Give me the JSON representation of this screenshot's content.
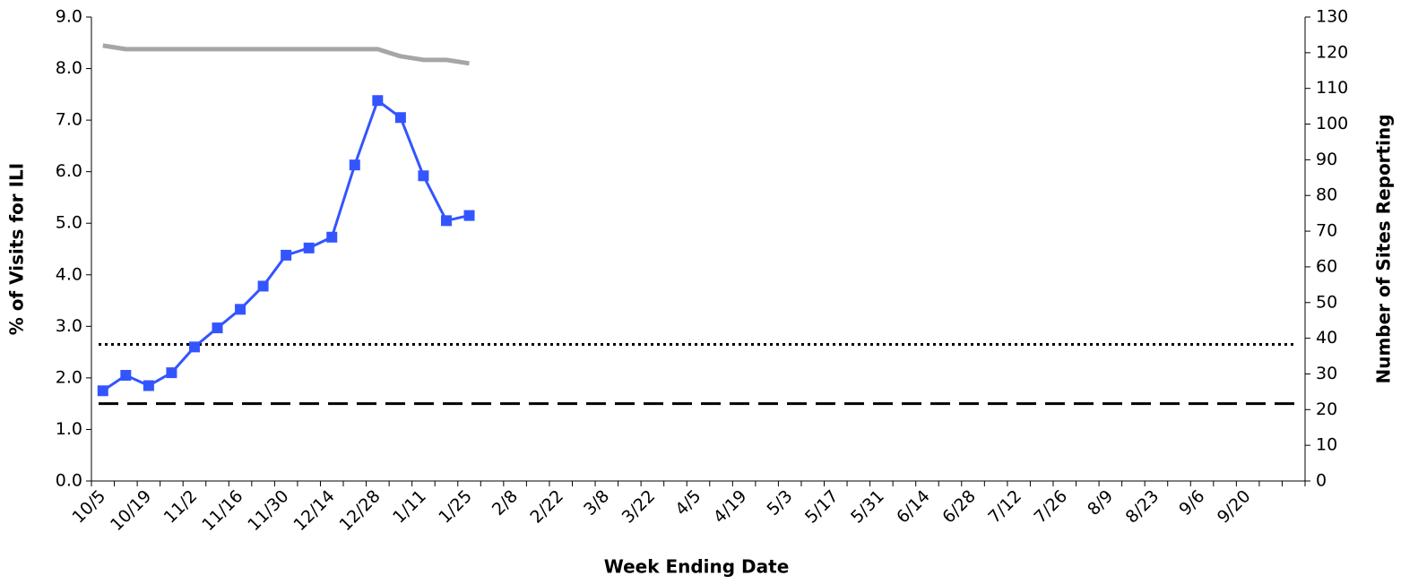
{
  "chart_data": {
    "type": "line",
    "y_title": "% of Visits for ILI",
    "y2_title": "Number of Sites Reporting",
    "x_title": "Week Ending Date",
    "categories": [
      "10/5",
      null,
      "10/19",
      null,
      "11/2",
      null,
      "11/16",
      null,
      "11/30",
      null,
      "12/14",
      null,
      "12/28",
      null,
      "1/11",
      null,
      "1/25",
      null,
      "2/8",
      null,
      "2/22",
      null,
      "3/8",
      null,
      "3/22",
      null,
      "4/5",
      null,
      "4/19",
      null,
      "5/3",
      null,
      "5/17",
      null,
      "5/31",
      null,
      "6/14",
      null,
      "6/28",
      null,
      "7/12",
      null,
      "7/26",
      null,
      "8/9",
      null,
      "8/23",
      null,
      "9/6",
      null,
      "9/20",
      null,
      null
    ],
    "series": [
      {
        "color": "#a6a6a6",
        "axis": "y2",
        "markers": false,
        "values": [
          122,
          121,
          121,
          121,
          121,
          121,
          121,
          121,
          121,
          121,
          121,
          121,
          121,
          119,
          118,
          118,
          117,
          null,
          null,
          null,
          null,
          null,
          null,
          null,
          null,
          null,
          null,
          null,
          null,
          null,
          null,
          null,
          null,
          null,
          null,
          null,
          null,
          null,
          null,
          null,
          null,
          null,
          null,
          null,
          null,
          null,
          null,
          null,
          null,
          null,
          null,
          null,
          null
        ]
      },
      {
        "color": "#3355ff",
        "axis": "y",
        "markers": true,
        "values": [
          1.75,
          2.05,
          1.85,
          2.1,
          2.6,
          2.97,
          3.33,
          3.78,
          4.38,
          4.52,
          4.73,
          6.13,
          7.38,
          7.05,
          5.92,
          5.05,
          5.15,
          null,
          null,
          null,
          null,
          null,
          null,
          null,
          null,
          null,
          null,
          null,
          null,
          null,
          null,
          null,
          null,
          null,
          null,
          null,
          null,
          null,
          null,
          null,
          null,
          null,
          null,
          null,
          null,
          null,
          null,
          null,
          null,
          null,
          null,
          null,
          null
        ]
      }
    ],
    "hlines": [
      {
        "value": 2.65,
        "style": "dotted"
      },
      {
        "value": 1.5,
        "style": "dashed"
      }
    ],
    "ylim": [
      0,
      9
    ],
    "yticks": [
      {
        "value": 0,
        "label": "0.0"
      },
      {
        "value": 1,
        "label": "1.0"
      },
      {
        "value": 2,
        "label": "2.0"
      },
      {
        "value": 3,
        "label": "3.0"
      },
      {
        "value": 4,
        "label": "4.0"
      },
      {
        "value": 5,
        "label": "5.0"
      },
      {
        "value": 6,
        "label": "6.0"
      },
      {
        "value": 7,
        "label": "7.0"
      },
      {
        "value": 8,
        "label": "8.0"
      },
      {
        "value": 9,
        "label": "9.0"
      }
    ],
    "y2lim": [
      0,
      130
    ],
    "y2ticks": [
      0,
      10,
      20,
      30,
      40,
      50,
      60,
      70,
      80,
      90,
      100,
      110,
      120,
      130
    ],
    "grid": false
  }
}
